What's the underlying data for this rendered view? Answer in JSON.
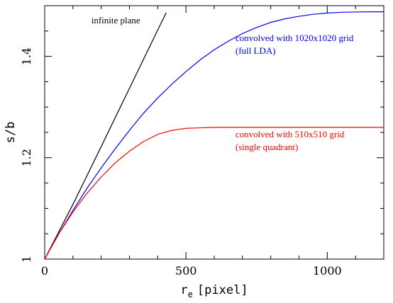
{
  "chart_data": {
    "type": "line",
    "title": "",
    "xlabel_main": "r",
    "xlabel_sub": "e",
    "xlabel_unit": "[pixel]",
    "ylabel": "s/b",
    "xlim": [
      0,
      1200
    ],
    "ylim": [
      1.0,
      1.5
    ],
    "x_ticks": [
      0,
      500,
      1000
    ],
    "x_tick_labels": [
      "0",
      "500",
      "1000"
    ],
    "y_ticks": [
      1.0,
      1.2,
      1.4
    ],
    "y_tick_labels": [
      "1",
      "1.2",
      "1.4"
    ],
    "grid": false,
    "series": [
      {
        "key": "infinite",
        "color": "#000000",
        "x": [
          0,
          100,
          200,
          300,
          400,
          430
        ],
        "y": [
          1.0,
          1.108,
          1.222,
          1.337,
          1.452,
          1.486
        ]
      },
      {
        "key": "full",
        "color": "#0000ff",
        "x": [
          0,
          50,
          100,
          150,
          200,
          250,
          300,
          350,
          400,
          450,
          500,
          550,
          600,
          650,
          700,
          750,
          800,
          850,
          900,
          950,
          1000,
          1050,
          1100,
          1150,
          1200
        ],
        "y": [
          1.0,
          1.05,
          1.096,
          1.14,
          1.18,
          1.218,
          1.254,
          1.288,
          1.318,
          1.345,
          1.37,
          1.393,
          1.413,
          1.43,
          1.445,
          1.457,
          1.467,
          1.474,
          1.479,
          1.483,
          1.4855,
          1.487,
          1.4875,
          1.488,
          1.488
        ]
      },
      {
        "key": "single",
        "color": "#ff0000",
        "x": [
          0,
          50,
          100,
          150,
          200,
          250,
          300,
          350,
          400,
          450,
          500,
          550,
          600,
          700,
          800,
          900,
          1000,
          1100,
          1200
        ],
        "y": [
          1.0,
          1.05,
          1.093,
          1.13,
          1.162,
          1.19,
          1.213,
          1.232,
          1.246,
          1.254,
          1.258,
          1.259,
          1.26,
          1.26,
          1.26,
          1.26,
          1.26,
          1.26,
          1.26
        ]
      }
    ],
    "annotations": [
      {
        "key": "infinite",
        "lines": [
          "infinite plane"
        ],
        "color": "#000000",
        "at": [
          165,
          1.465
        ]
      },
      {
        "key": "full",
        "lines": [
          "convolved with 1020x1020 grid",
          "(full LDA)"
        ],
        "color": "#0000ff",
        "at": [
          675,
          1.43
        ]
      },
      {
        "key": "single",
        "lines": [
          "convolved with 510x510 grid",
          "(single quadrant)"
        ],
        "color": "#ff0000",
        "at": [
          675,
          1.24
        ]
      }
    ]
  }
}
